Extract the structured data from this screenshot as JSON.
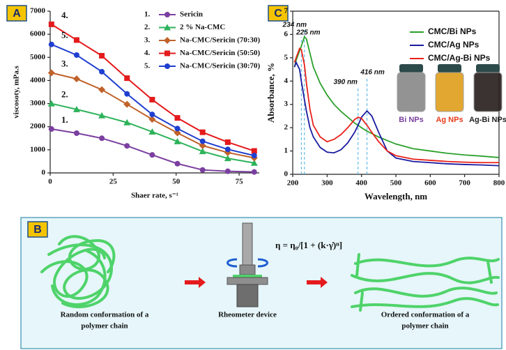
{
  "chart_data": [
    {
      "type": "line",
      "panel_label": "A",
      "xlabel": "Shaer rate, s⁻¹",
      "ylabel": "viscosoty, mPa.s",
      "x": [
        0.5,
        10.5,
        20.5,
        30.5,
        40.5,
        50.5,
        60.5,
        70.5,
        81
      ],
      "xlim": [
        0,
        83
      ],
      "xticks": [
        0,
        25,
        50,
        75
      ],
      "ylim": [
        0,
        7000
      ],
      "yticks": [
        0,
        1000,
        2000,
        3000,
        4000,
        5000,
        6000,
        7000
      ],
      "legend": "upper right",
      "series": [
        {
          "number": "1.",
          "name": "Sericin",
          "marker": "circle",
          "color": "#7b3fa0",
          "values": [
            1900,
            1720,
            1500,
            1170,
            780,
            400,
            130,
            70,
            40
          ]
        },
        {
          "number": "2.",
          "name": "2 % Na-CMC",
          "marker": "triangle",
          "color": "#2db35a",
          "values": [
            3000,
            2750,
            2480,
            2180,
            1780,
            1360,
            930,
            630,
            430
          ]
        },
        {
          "number": "3.",
          "name": "Na-CMC/Sericin (70:30)",
          "marker": "diamond",
          "color": "#c0622a",
          "values": [
            4330,
            4070,
            3600,
            2970,
            2320,
            1730,
            1180,
            880,
            650
          ]
        },
        {
          "number": "4.",
          "name": "Na-CMC/Sericin (50:50)",
          "marker": "square",
          "color": "#e41a1c",
          "values": [
            6430,
            5750,
            5070,
            4100,
            3170,
            2380,
            1760,
            1330,
            950
          ]
        },
        {
          "number": "5.",
          "name": "Na-CMC/Sericin (30:70)",
          "marker": "circle",
          "color": "#1f3fd0",
          "values": [
            5560,
            5100,
            4380,
            3420,
            2530,
            1920,
            1370,
            1020,
            750
          ]
        }
      ]
    },
    {
      "type": "line",
      "panel_label": "C",
      "xlabel": "Wavelength, nm",
      "ylabel": "Absorbance, %",
      "x": [
        205,
        210,
        220,
        225,
        234,
        240,
        250,
        260,
        280,
        300,
        320,
        340,
        360,
        380,
        390,
        400,
        416,
        430,
        450,
        475,
        500,
        550,
        600,
        650,
        700,
        750,
        800
      ],
      "xlim": [
        200,
        800
      ],
      "xticks": [
        200,
        300,
        400,
        500,
        600,
        700,
        800
      ],
      "ylim": [
        0,
        7
      ],
      "yticks": [
        0,
        1,
        2,
        3,
        4,
        5,
        6,
        7
      ],
      "legend": "upper right",
      "series": [
        {
          "name": "CMC/Bi NPs",
          "color": "#2aa02a",
          "values": [
            4.6,
            4.9,
            5.3,
            5.5,
            5.9,
            5.8,
            5.2,
            4.6,
            3.9,
            3.4,
            3.0,
            2.7,
            2.45,
            2.2,
            2.1,
            2.0,
            1.85,
            1.75,
            1.6,
            1.45,
            1.3,
            1.1,
            1.0,
            0.9,
            0.83,
            0.78,
            0.72
          ]
        },
        {
          "name": "CMC/Ag NPs",
          "color": "#1a1aa0",
          "values": [
            4.6,
            4.8,
            4.5,
            4.0,
            3.2,
            2.7,
            2.0,
            1.6,
            1.15,
            0.95,
            0.92,
            1.05,
            1.35,
            1.8,
            2.1,
            2.45,
            2.72,
            2.5,
            1.8,
            1.0,
            0.7,
            0.55,
            0.5,
            0.45,
            0.42,
            0.4,
            0.37
          ]
        },
        {
          "name": "CMC/Ag-Bi NPs",
          "color": "#e8201a",
          "values": [
            4.8,
            5.0,
            5.4,
            5.35,
            4.7,
            3.9,
            2.8,
            2.1,
            1.6,
            1.4,
            1.5,
            1.7,
            2.0,
            2.35,
            2.45,
            2.4,
            2.1,
            1.8,
            1.4,
            1.0,
            0.8,
            0.65,
            0.6,
            0.55,
            0.52,
            0.5,
            0.5
          ]
        }
      ],
      "annotations": [
        {
          "text": "234 nm",
          "x": 234
        },
        {
          "text": "225 nm",
          "x": 225
        },
        {
          "text": "390 nm",
          "x": 390
        },
        {
          "text": "416 nm",
          "x": 416
        }
      ],
      "samples": [
        {
          "label": "Bi NPs",
          "color": "#8a8a8a",
          "label_color": "#7a3fa0"
        },
        {
          "label": "Ag NPs",
          "color": "#e0a020",
          "label_color": "#e83a1a"
        },
        {
          "label": "Ag-Bi NPs",
          "color": "#2a2220",
          "label_color": "#222222"
        }
      ]
    }
  ],
  "diagram": {
    "panel_label": "B",
    "formula": "η = η₀/[1 + (k·γ̇)ⁿ]",
    "captions": [
      [
        "Random conformation of a",
        "polymer chain"
      ],
      [
        "Rheometer device"
      ],
      [
        "Ordered conformation of a",
        "polymer chain"
      ]
    ]
  }
}
